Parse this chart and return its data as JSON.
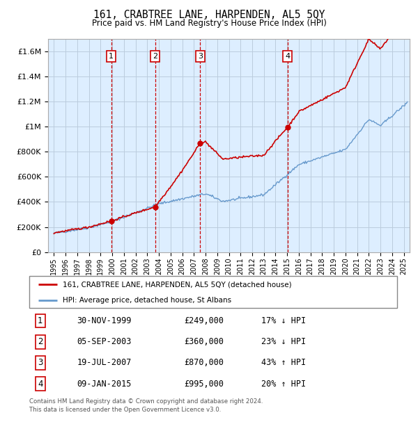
{
  "title": "161, CRABTREE LANE, HARPENDEN, AL5 5QY",
  "subtitle": "Price paid vs. HM Land Registry's House Price Index (HPI)",
  "footer": "Contains HM Land Registry data © Crown copyright and database right 2024.\nThis data is licensed under the Open Government Licence v3.0.",
  "legend_label_red": "161, CRABTREE LANE, HARPENDEN, AL5 5QY (detached house)",
  "legend_label_blue": "HPI: Average price, detached house, St Albans",
  "transactions": [
    {
      "num": 1,
      "date": "30-NOV-1999",
      "price": 249000,
      "pct": "17%",
      "dir": "↓",
      "x": 1999.92
    },
    {
      "num": 2,
      "date": "05-SEP-2003",
      "price": 360000,
      "pct": "23%",
      "dir": "↓",
      "x": 2003.67
    },
    {
      "num": 3,
      "date": "19-JUL-2007",
      "price": 870000,
      "pct": "43%",
      "dir": "↑",
      "x": 2007.54
    },
    {
      "num": 4,
      "date": "09-JAN-2015",
      "price": 995000,
      "pct": "20%",
      "dir": "↑",
      "x": 2015.03
    }
  ],
  "hpi_color": "#6699cc",
  "price_color": "#cc0000",
  "vline_color": "#cc0000",
  "bg_color": "#ddeeff",
  "grid_color": "#bbccdd",
  "ylim": [
    0,
    1700000
  ],
  "xlim_start": 1994.5,
  "xlim_end": 2025.5,
  "yticks": [
    0,
    200000,
    400000,
    600000,
    800000,
    1000000,
    1200000,
    1400000,
    1600000
  ]
}
